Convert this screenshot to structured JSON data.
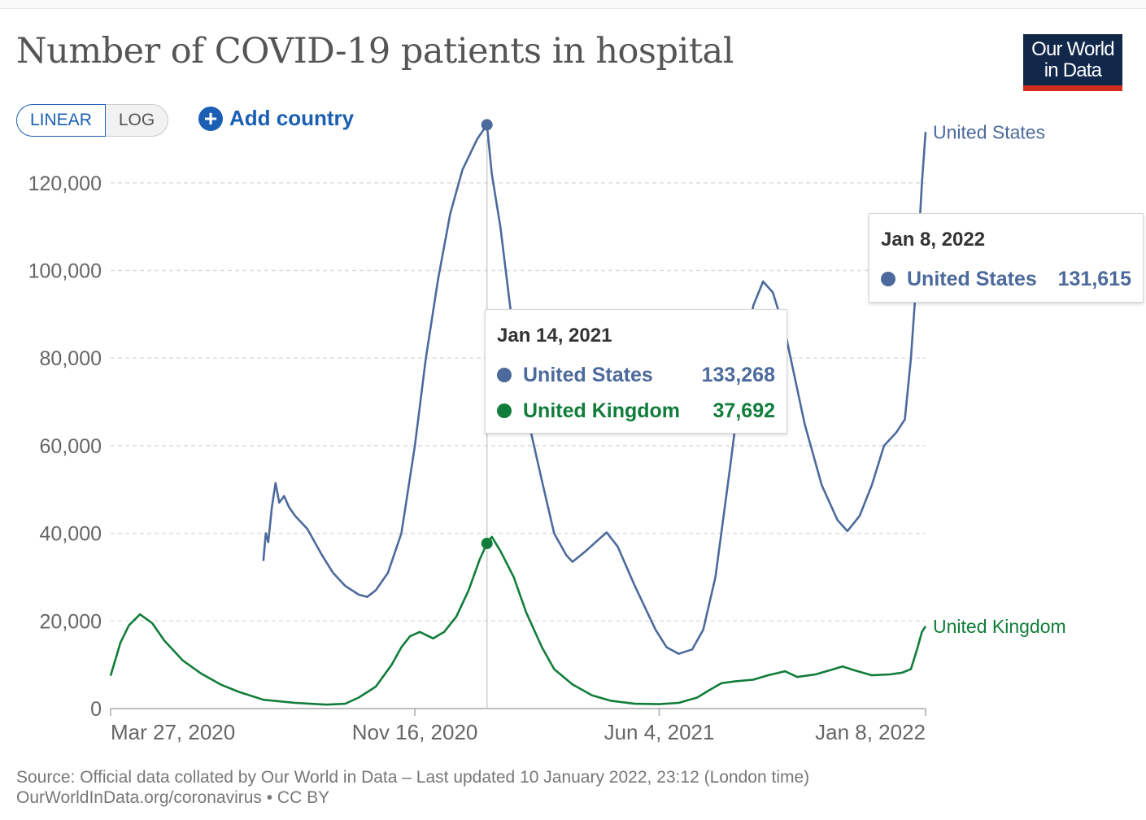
{
  "header": {
    "title": "Number of COVID-19 patients in hospital",
    "logo_line1": "Our World",
    "logo_line2": "in Data"
  },
  "controls": {
    "linear_label": "LINEAR",
    "log_label": "LOG",
    "add_country_label": "Add country",
    "active_scale": "linear"
  },
  "colors": {
    "us": "#4c6a9c",
    "uk": "#117d3a",
    "accent": "#1a5fb4",
    "logo_bg": "#12284b",
    "logo_stripe": "#d42b21"
  },
  "chart_data": {
    "type": "line",
    "title": "Number of COVID-19 patients in hospital",
    "xlabel": "",
    "ylabel": "",
    "x_ticks": [
      "Mar 27, 2020",
      "Nov 16, 2020",
      "Jun 4, 2021",
      "Jan 8, 2022"
    ],
    "y_ticks": [
      "0",
      "20,000",
      "40,000",
      "60,000",
      "80,000",
      "100,000",
      "120,000"
    ],
    "ylim": [
      0,
      130000
    ],
    "xlim": [
      "2020-03-12",
      "2022-01-08"
    ],
    "grid": "horizontal dashed",
    "series": [
      {
        "name": "United States",
        "color": "#4c6a9c",
        "points": [
          [
            "2020-07-15",
            33700
          ],
          [
            "2020-07-17",
            40000
          ],
          [
            "2020-07-19",
            38000
          ],
          [
            "2020-07-22",
            46000
          ],
          [
            "2020-07-25",
            51500
          ],
          [
            "2020-07-28",
            47000
          ],
          [
            "2020-08-01",
            48500
          ],
          [
            "2020-08-05",
            46000
          ],
          [
            "2020-08-10",
            44000
          ],
          [
            "2020-08-20",
            41000
          ],
          [
            "2020-09-01",
            35000
          ],
          [
            "2020-09-10",
            31000
          ],
          [
            "2020-09-20",
            28000
          ],
          [
            "2020-10-01",
            26000
          ],
          [
            "2020-10-08",
            25500
          ],
          [
            "2020-10-15",
            27000
          ],
          [
            "2020-10-25",
            31000
          ],
          [
            "2020-11-05",
            40000
          ],
          [
            "2020-11-16",
            60000
          ],
          [
            "2020-11-25",
            80000
          ],
          [
            "2020-12-05",
            98000
          ],
          [
            "2020-12-15",
            113000
          ],
          [
            "2020-12-25",
            123000
          ],
          [
            "2021-01-06",
            130000
          ],
          [
            "2021-01-14",
            133268
          ],
          [
            "2021-01-18",
            122000
          ],
          [
            "2021-01-25",
            110000
          ],
          [
            "2021-02-05",
            85000
          ],
          [
            "2021-02-15",
            68000
          ],
          [
            "2021-02-28",
            52000
          ],
          [
            "2021-03-10",
            40000
          ],
          [
            "2021-03-20",
            35000
          ],
          [
            "2021-03-25",
            33500
          ],
          [
            "2021-04-05",
            36000
          ],
          [
            "2021-04-15",
            38500
          ],
          [
            "2021-04-22",
            40200
          ],
          [
            "2021-05-01",
            37000
          ],
          [
            "2021-05-15",
            28000
          ],
          [
            "2021-06-01",
            18000
          ],
          [
            "2021-06-10",
            14000
          ],
          [
            "2021-06-20",
            12500
          ],
          [
            "2021-07-01",
            13500
          ],
          [
            "2021-07-10",
            18000
          ],
          [
            "2021-07-20",
            30000
          ],
          [
            "2021-08-01",
            55000
          ],
          [
            "2021-08-10",
            75000
          ],
          [
            "2021-08-20",
            92000
          ],
          [
            "2021-08-28",
            97500
          ],
          [
            "2021-09-05",
            95000
          ],
          [
            "2021-09-15",
            86000
          ],
          [
            "2021-10-01",
            65000
          ],
          [
            "2021-10-15",
            51000
          ],
          [
            "2021-10-28",
            43000
          ],
          [
            "2021-11-05",
            40500
          ],
          [
            "2021-11-15",
            44000
          ],
          [
            "2021-11-25",
            51000
          ],
          [
            "2021-12-05",
            60000
          ],
          [
            "2021-12-15",
            63000
          ],
          [
            "2021-12-22",
            66000
          ],
          [
            "2021-12-27",
            80000
          ],
          [
            "2022-01-01",
            100000
          ],
          [
            "2022-01-05",
            120000
          ],
          [
            "2022-01-08",
            131615
          ]
        ]
      },
      {
        "name": "United Kingdom",
        "color": "#117d3a",
        "points": [
          [
            "2020-03-12",
            7500
          ],
          [
            "2020-03-20",
            15000
          ],
          [
            "2020-03-27",
            19000
          ],
          [
            "2020-04-05",
            21500
          ],
          [
            "2020-04-15",
            19500
          ],
          [
            "2020-04-25",
            15500
          ],
          [
            "2020-05-10",
            11000
          ],
          [
            "2020-05-25",
            8000
          ],
          [
            "2020-06-10",
            5500
          ],
          [
            "2020-06-25",
            3800
          ],
          [
            "2020-07-15",
            2000
          ],
          [
            "2020-08-10",
            1300
          ],
          [
            "2020-09-05",
            900
          ],
          [
            "2020-09-20",
            1100
          ],
          [
            "2020-10-01",
            2500
          ],
          [
            "2020-10-15",
            5000
          ],
          [
            "2020-10-28",
            10000
          ],
          [
            "2020-11-05",
            14000
          ],
          [
            "2020-11-12",
            16500
          ],
          [
            "2020-11-20",
            17500
          ],
          [
            "2020-12-01",
            16000
          ],
          [
            "2020-12-10",
            17500
          ],
          [
            "2020-12-20",
            21000
          ],
          [
            "2020-12-30",
            27000
          ],
          [
            "2021-01-08",
            34000
          ],
          [
            "2021-01-14",
            37692
          ],
          [
            "2021-01-18",
            39200
          ],
          [
            "2021-01-25",
            36000
          ],
          [
            "2021-02-05",
            30000
          ],
          [
            "2021-02-15",
            22000
          ],
          [
            "2021-02-28",
            14000
          ],
          [
            "2021-03-10",
            9000
          ],
          [
            "2021-03-25",
            5500
          ],
          [
            "2021-04-10",
            3000
          ],
          [
            "2021-04-25",
            1800
          ],
          [
            "2021-05-15",
            1100
          ],
          [
            "2021-06-04",
            1000
          ],
          [
            "2021-06-20",
            1300
          ],
          [
            "2021-07-05",
            2500
          ],
          [
            "2021-07-15",
            4200
          ],
          [
            "2021-07-25",
            5800
          ],
          [
            "2021-08-05",
            6200
          ],
          [
            "2021-08-20",
            6600
          ],
          [
            "2021-09-01",
            7600
          ],
          [
            "2021-09-15",
            8500
          ],
          [
            "2021-09-25",
            7200
          ],
          [
            "2021-10-10",
            7800
          ],
          [
            "2021-10-25",
            9000
          ],
          [
            "2021-11-01",
            9600
          ],
          [
            "2021-11-10",
            8800
          ],
          [
            "2021-11-25",
            7600
          ],
          [
            "2021-12-10",
            7800
          ],
          [
            "2021-12-20",
            8200
          ],
          [
            "2021-12-27",
            9000
          ],
          [
            "2022-01-01",
            13500
          ],
          [
            "2022-01-05",
            17500
          ],
          [
            "2022-01-08",
            18800
          ]
        ]
      }
    ],
    "line_labels": [
      {
        "text": "United States",
        "series": "United States"
      },
      {
        "text": "United Kingdom",
        "series": "United Kingdom"
      }
    ],
    "hover_date": "2021-01-14"
  },
  "tooltip_main": {
    "date": "Jan 14, 2021",
    "rows": [
      {
        "name": "United States",
        "value": "133,268",
        "color": "#4c6a9c"
      },
      {
        "name": "United Kingdom",
        "value": "37,692",
        "color": "#117d3a"
      }
    ]
  },
  "tooltip_end": {
    "date": "Jan 8, 2022",
    "rows": [
      {
        "name": "United States",
        "value": "131,615",
        "color": "#4c6a9c"
      }
    ]
  },
  "footer": {
    "source": "Source: Official data collated by Our World in Data – Last updated 10 January 2022, 23:12 (London time)",
    "link": "OurWorldInData.org/coronavirus • CC BY"
  }
}
